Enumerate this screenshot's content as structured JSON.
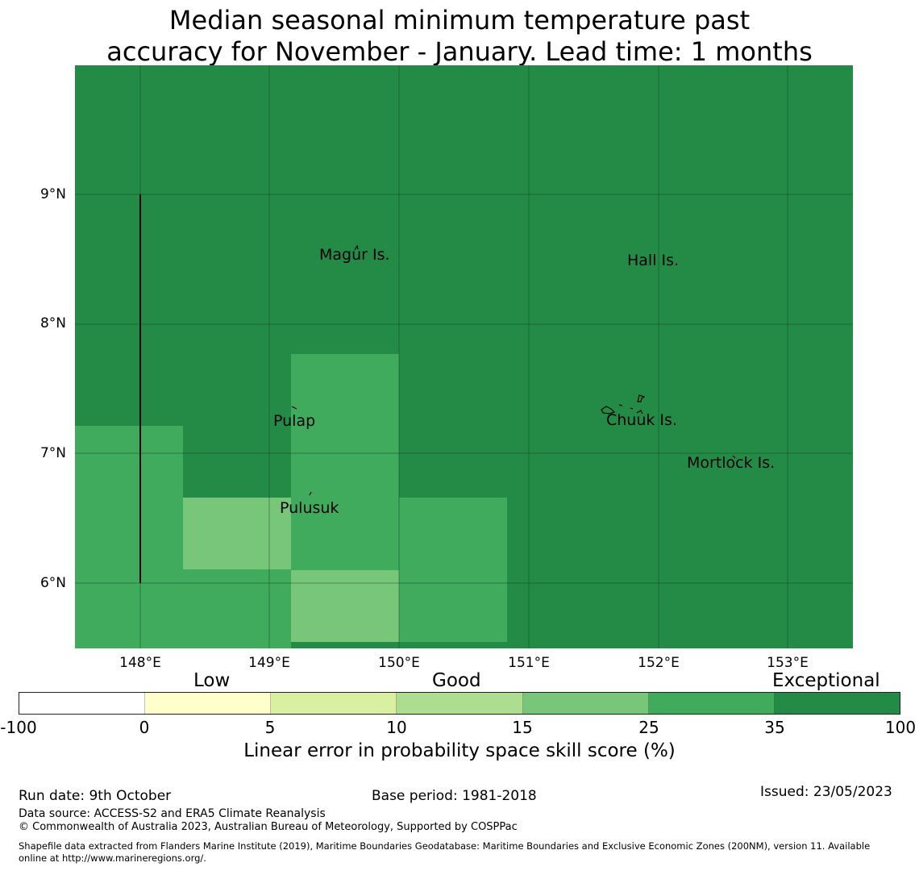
{
  "title": {
    "line1": "Median seasonal minimum temperature past",
    "line2": "accuracy for November - January. Lead time: 1 months"
  },
  "map": {
    "lat_ticks": [
      "9°N",
      "8°N",
      "7°N",
      "6°N"
    ],
    "lon_ticks": [
      "148°E",
      "149°E",
      "150°E",
      "151°E",
      "152°E",
      "153°E"
    ],
    "places": [
      {
        "name": "Magur Is."
      },
      {
        "name": "Hall Is."
      },
      {
        "name": "Pulap"
      },
      {
        "name": "Chuuk Is."
      },
      {
        "name": "Mortlock Is."
      },
      {
        "name": "Pulusuk"
      }
    ],
    "colors": {
      "exceptional": "#238b45",
      "good_high": "#41ab5d",
      "good_mid": "#78c679"
    }
  },
  "legend": {
    "categories": [
      "Low",
      "Good",
      "Exceptional"
    ],
    "ticks": [
      "-100",
      "0",
      "5",
      "10",
      "15",
      "25",
      "35",
      "100"
    ],
    "colors": [
      "#ffffff",
      "#ffffcc",
      "#d9f0a3",
      "#addd8e",
      "#78c679",
      "#41ab5d",
      "#238b45"
    ],
    "label": "Linear error in probability space skill score (%)"
  },
  "footer": {
    "run_date": "Run date: 9th October",
    "base_period": "Base period: 1981-2018",
    "issued": "Issued: 23/05/2023",
    "data_source": "Data source: ACCESS-S2 and ERA5 Climate Reanalysis",
    "copyright": "© Commonwealth of Australia 2023, Australian Bureau of Meteorology, Supported by COSPPac",
    "shapefile_line1": "Shapefile data extracted from Flanders Marine Institute (2019), Maritime Boundaries Geodatabase: Maritime Boundaries and Exclusive Economic Zones (200NM), version 11. Available",
    "shapefile_line2": "online at http://www.marineregions.org/."
  }
}
